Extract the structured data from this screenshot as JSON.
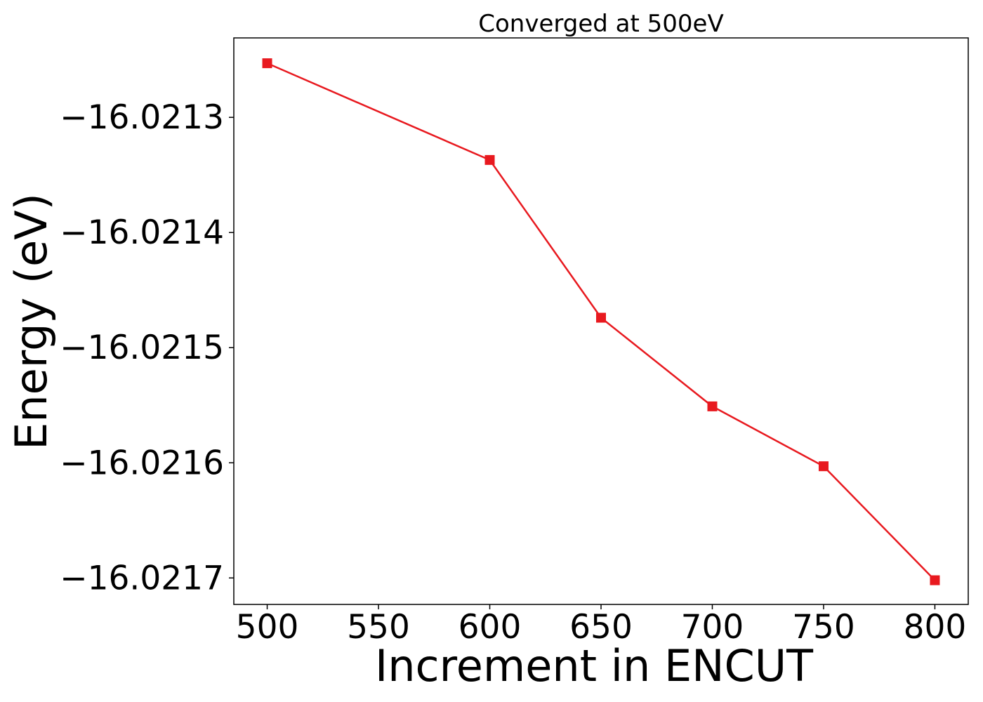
{
  "chart_data": {
    "type": "line",
    "title": "Converged at 500eV",
    "xlabel": "Increment in ENCUT",
    "ylabel": "Energy (eV)",
    "x": [
      500,
      600,
      650,
      700,
      750,
      800
    ],
    "series": [
      {
        "values": [
          -16.021253,
          -16.021337,
          -16.021474,
          -16.021551,
          -16.021603,
          -16.021702
        ],
        "color": "#e8191f",
        "marker": "square"
      }
    ],
    "xlim": [
      485,
      815
    ],
    "ylim": [
      -16.021723,
      -16.021231
    ],
    "xticks": [
      500,
      550,
      600,
      650,
      700,
      750,
      800
    ],
    "xtick_labels": [
      "500",
      "550",
      "600",
      "650",
      "700",
      "750",
      "800"
    ],
    "yticks": [
      -16.0213,
      -16.0214,
      -16.0215,
      -16.0216,
      -16.0217
    ],
    "ytick_labels": [
      "−16.0213",
      "−16.0214",
      "−16.0215",
      "−16.0216",
      "−16.0217"
    ],
    "grid": false,
    "legend": "none"
  }
}
